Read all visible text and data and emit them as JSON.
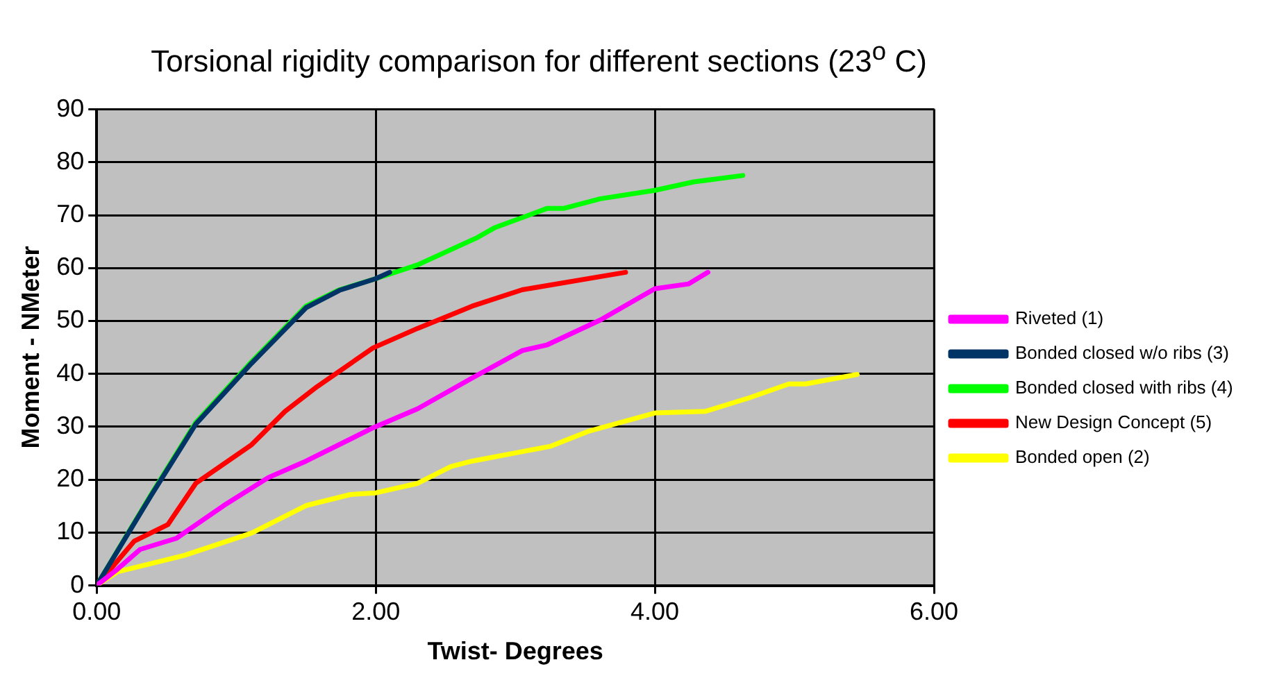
{
  "chart_data": {
    "type": "line",
    "title": "Torsional rigidity comparison for different sections (23$^{o}$ C)",
    "xlabel": "Twist- Degrees",
    "ylabel": "Moment - NMeter",
    "xlim": [
      0,
      6
    ],
    "xticks": [
      {
        "value": 0,
        "label": "0.00"
      },
      {
        "value": 2,
        "label": "2.00"
      },
      {
        "value": 4,
        "label": "4.00"
      },
      {
        "value": 6,
        "label": "6.00"
      }
    ],
    "ylim": [
      0,
      90
    ],
    "yticks": [
      0,
      10,
      20,
      30,
      40,
      50,
      60,
      70,
      80,
      90
    ],
    "grid": true,
    "legend": "right",
    "marker": "none",
    "line_style": "solid",
    "series": [
      {
        "name": "Riveted (1)",
        "color": "#ff00ff",
        "x": [
          0,
          0.15,
          0.31,
          0.57,
          0.91,
          1.23,
          1.5,
          1.98,
          2.3,
          2.69,
          3.05,
          3.23,
          3.61,
          4.0,
          4.24,
          4.38
        ],
        "values": [
          0,
          3.1,
          6.8,
          8.9,
          15.1,
          20.4,
          23.5,
          29.8,
          33.4,
          39.2,
          44.4,
          45.5,
          50.2,
          56.1,
          57,
          59.2
        ]
      },
      {
        "name": "Bonded closed w/o ribs (3)",
        "color": "#003366",
        "x": [
          0,
          0.39,
          0.71,
          1.11,
          1.5,
          1.74,
          2.0,
          2.1
        ],
        "values": [
          0,
          17,
          30.5,
          42,
          52.5,
          55.8,
          58,
          59.2
        ]
      },
      {
        "name": "Bonded closed with ribs (4)",
        "color": "#00ff00",
        "x": [
          0,
          0.39,
          0.71,
          1.11,
          1.5,
          1.74,
          2.0,
          2.3,
          2.73,
          2.85,
          3.23,
          3.35,
          3.61,
          4.0,
          4.28,
          4.63
        ],
        "values": [
          0,
          17.2,
          30.8,
          42.3,
          52.8,
          55.9,
          58,
          60.6,
          65.8,
          67.6,
          71.3,
          71.3,
          73.1,
          74.7,
          76.3,
          77.5
        ]
      },
      {
        "name": "New Design Concept (5)",
        "color": "#ff0000",
        "x": [
          0,
          0.27,
          0.51,
          0.71,
          1.11,
          1.35,
          1.58,
          1.98,
          2.3,
          2.69,
          3.05,
          3.79
        ],
        "values": [
          0,
          8.4,
          11.5,
          19.3,
          26.6,
          32.9,
          37.6,
          44.9,
          48.6,
          52.8,
          55.9,
          59.2
        ]
      },
      {
        "name": "Bonded open (2)",
        "color": "#ffff00",
        "x": [
          0,
          0.15,
          0.63,
          1.11,
          1.5,
          1.82,
          2.0,
          2.3,
          2.54,
          2.69,
          3.25,
          3.53,
          4.0,
          4.36,
          4.68,
          4.96,
          5.08,
          5.45
        ],
        "values": [
          0,
          2.6,
          5.7,
          9.9,
          15.1,
          17.2,
          17.5,
          19.3,
          22.5,
          23.5,
          26.3,
          29.2,
          32.6,
          32.9,
          35.5,
          38.1,
          38.1,
          39.9
        ]
      }
    ]
  }
}
